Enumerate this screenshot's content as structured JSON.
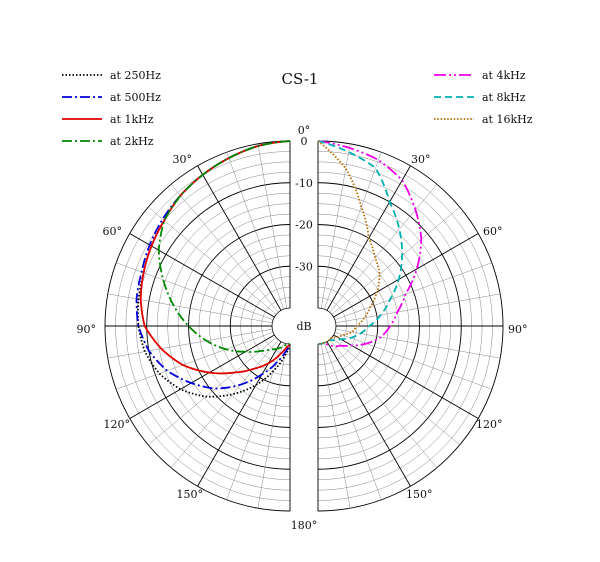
{
  "chart_data": {
    "type": "polar",
    "title": "CS-1",
    "radial_unit_label": "dB",
    "radial_range": [
      -40,
      0
    ],
    "radial_ticks": [
      "0",
      "-10",
      "-20",
      "-30"
    ],
    "angle_ticks": [
      "0°",
      "30°",
      "60°",
      "90°",
      "120°",
      "150°",
      "180°"
    ],
    "angle_range_deg": [
      0,
      180
    ],
    "grid": true,
    "legend_left": "top-left",
    "legend_right": "top-right",
    "left_half": {
      "series": [
        {
          "name": "at 250Hz",
          "color": "#000000",
          "dash": "1.5,2",
          "points": [
            [
              0,
              0
            ],
            [
              10,
              -0.5
            ],
            [
              20,
              -1.5
            ],
            [
              30,
              -2.5
            ],
            [
              40,
              -3.5
            ],
            [
              50,
              -5
            ],
            [
              60,
              -6
            ],
            [
              70,
              -7
            ],
            [
              80,
              -7.5
            ],
            [
              90,
              -8
            ],
            [
              100,
              -9
            ],
            [
              110,
              -11
            ],
            [
              120,
              -14
            ],
            [
              130,
              -18
            ],
            [
              140,
              -23
            ],
            [
              150,
              -28
            ],
            [
              160,
              -33
            ],
            [
              170,
              -37
            ],
            [
              180,
              -40
            ]
          ]
        },
        {
          "name": "at 500Hz",
          "color": "#0000dd",
          "dash": "10,3,2,3",
          "points": [
            [
              0,
              0
            ],
            [
              10,
              -0.5
            ],
            [
              20,
              -1.5
            ],
            [
              30,
              -2.5
            ],
            [
              40,
              -3.5
            ],
            [
              50,
              -4.5
            ],
            [
              60,
              -5.5
            ],
            [
              70,
              -6.5
            ],
            [
              80,
              -7
            ],
            [
              90,
              -8
            ],
            [
              100,
              -10
            ],
            [
              110,
              -13
            ],
            [
              120,
              -17
            ],
            [
              130,
              -21
            ],
            [
              140,
              -26
            ],
            [
              150,
              -31
            ],
            [
              160,
              -35
            ],
            [
              170,
              -38
            ],
            [
              180,
              -40
            ]
          ]
        },
        {
          "name": "at 1kHz",
          "color": "#e00000",
          "dash": "",
          "points": [
            [
              0,
              0
            ],
            [
              10,
              -0.5
            ],
            [
              20,
              -1.5
            ],
            [
              30,
              -2.5
            ],
            [
              40,
              -3.5
            ],
            [
              50,
              -5
            ],
            [
              60,
              -6
            ],
            [
              70,
              -7
            ],
            [
              80,
              -8
            ],
            [
              90,
              -9.5
            ],
            [
              100,
              -13
            ],
            [
              110,
              -17
            ],
            [
              120,
              -22
            ],
            [
              130,
              -27
            ],
            [
              140,
              -31
            ],
            [
              150,
              -34
            ],
            [
              160,
              -37
            ],
            [
              170,
              -39
            ],
            [
              180,
              -40
            ]
          ]
        },
        {
          "name": "at 2kHz",
          "color": "#008800",
          "dash": "10,3,2,3",
          "points": [
            [
              0,
              0
            ],
            [
              10,
              -0.5
            ],
            [
              20,
              -1.5
            ],
            [
              30,
              -2.5
            ],
            [
              40,
              -3.5
            ],
            [
              50,
              -5
            ],
            [
              60,
              -8
            ],
            [
              70,
              -12
            ],
            [
              80,
              -16
            ],
            [
              90,
              -20
            ],
            [
              100,
              -24
            ],
            [
              110,
              -28
            ],
            [
              120,
              -32
            ],
            [
              130,
              -35
            ],
            [
              140,
              -37
            ],
            [
              150,
              -38
            ],
            [
              160,
              -39
            ],
            [
              170,
              -40
            ],
            [
              180,
              -40
            ]
          ]
        }
      ]
    },
    "right_half": {
      "series": [
        {
          "name": "at 4kHz",
          "color": "#ee00ee",
          "dash": "12,3,2,3,2,3",
          "points": [
            [
              0,
              0
            ],
            [
              10,
              -1
            ],
            [
              20,
              -2
            ],
            [
              30,
              -4
            ],
            [
              40,
              -8
            ],
            [
              50,
              -12
            ],
            [
              60,
              -17
            ],
            [
              70,
              -22
            ],
            [
              80,
              -25
            ],
            [
              90,
              -27
            ],
            [
              100,
              -29
            ],
            [
              110,
              -32
            ],
            [
              120,
              -35
            ],
            [
              130,
              -37
            ],
            [
              140,
              -38
            ],
            [
              150,
              -39
            ],
            [
              160,
              -40
            ],
            [
              170,
              -40
            ],
            [
              180,
              -40
            ]
          ]
        },
        {
          "name": "at 8kHz",
          "color": "#00b0b0",
          "dash": "7,4",
          "points": [
            [
              0,
              0
            ],
            [
              10,
              -2
            ],
            [
              20,
              -4
            ],
            [
              30,
              -10
            ],
            [
              40,
              -14
            ],
            [
              50,
              -18
            ],
            [
              60,
              -22
            ],
            [
              70,
              -26
            ],
            [
              80,
              -29
            ],
            [
              90,
              -32
            ],
            [
              100,
              -34
            ],
            [
              110,
              -36
            ],
            [
              120,
              -38
            ],
            [
              130,
              -39
            ],
            [
              140,
              -40
            ],
            [
              150,
              -40
            ],
            [
              160,
              -40
            ],
            [
              170,
              -40
            ],
            [
              180,
              -40
            ]
          ]
        },
        {
          "name": "at 16kHz",
          "color": "#b86a00",
          "dash": "1.5,1.8",
          "points": [
            [
              0,
              0
            ],
            [
              10,
              -6
            ],
            [
              20,
              -14
            ],
            [
              30,
              -20
            ],
            [
              40,
              -23
            ],
            [
              50,
              -25
            ],
            [
              60,
              -28
            ],
            [
              70,
              -31
            ],
            [
              80,
              -33
            ],
            [
              90,
              -35
            ],
            [
              100,
              -36
            ],
            [
              110,
              -38
            ],
            [
              120,
              -39
            ],
            [
              130,
              -40
            ],
            [
              140,
              -40
            ],
            [
              150,
              -40
            ],
            [
              160,
              -40
            ],
            [
              170,
              -40
            ],
            [
              180,
              -40
            ]
          ]
        }
      ]
    }
  }
}
